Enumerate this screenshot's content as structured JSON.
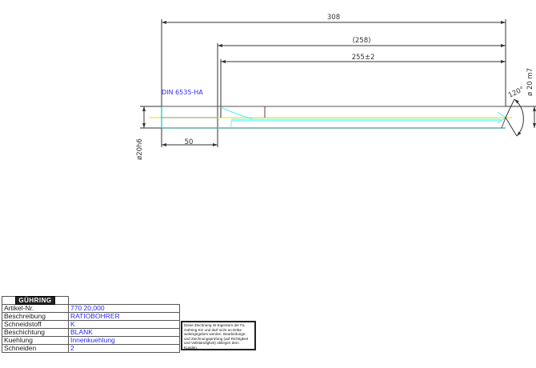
{
  "drawing": {
    "dimensions": {
      "overall_length": "308",
      "reference_length": "(258)",
      "flute_length": "255±2",
      "shank_length": "50",
      "shank_diameter": "ø20h6",
      "cutting_diameter": "ø 20 m7",
      "point_angle": "120°"
    },
    "standard_label": "DIN 6535-HA"
  },
  "title_block": {
    "logo": "GÜHRING",
    "rows": [
      {
        "label": "Artikel-Nr.",
        "value": "770 20,000"
      },
      {
        "label": "Beschreibung",
        "value": "RATIOBOHRER"
      },
      {
        "label": "Schneidstoff",
        "value": "K"
      },
      {
        "label": "Beschichtung",
        "value": "BLANK"
      },
      {
        "label": "Kuehlung",
        "value": "Innenkuehlung"
      },
      {
        "label": "Schneiden",
        "value": "2"
      }
    ],
    "note": "Diese Zeichnung ist Eigentum der Fa. Gühring KG und darf nicht an Dritte weitergegeben werden. Bearbeitungs- und Zeichnungsprüfung (auf Richtigkeit und Vollständigkeit) obliegen dem Kunden."
  }
}
